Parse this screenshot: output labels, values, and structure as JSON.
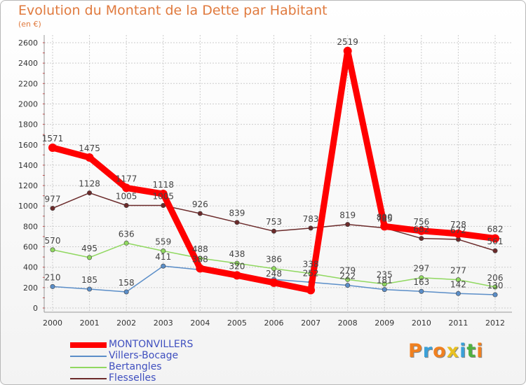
{
  "header": {
    "title": "Evolution du Montant de la Dette par Habitant",
    "subtitle": "(en €)"
  },
  "brand": {
    "letters": [
      "P",
      "r",
      "o",
      "x",
      "i",
      "t",
      "i"
    ],
    "colors": [
      "#f08020",
      "#3aa0d8",
      "#f08020",
      "#e8c020",
      "#3aa0d8",
      "#50b040",
      "#f08020"
    ]
  },
  "chart_data": {
    "type": "line",
    "title": "Evolution du Montant de la Dette par Habitant",
    "ylabel": "(en €)",
    "xlabel": "",
    "ylim": [
      0,
      2600
    ],
    "yticks": [
      0,
      200,
      400,
      600,
      800,
      1000,
      1200,
      1400,
      1600,
      1800,
      2000,
      2200,
      2400,
      2600
    ],
    "x": [
      "2000",
      "2001",
      "2002",
      "2003",
      "2004",
      "2005",
      "2006",
      "2007",
      "2008",
      "2009",
      "2010",
      "2011",
      "2012"
    ],
    "grid": true,
    "legend_position": "bottom-left",
    "series": [
      {
        "name": "MONTONVILLERS",
        "color": "#ff0000",
        "values": [
          1571,
          1475,
          1177,
          1118,
          388,
          320,
          248,
          175,
          2519,
          800,
          756,
          728,
          682
        ],
        "labels": [
          "1571",
          "1475",
          "1177",
          "1118",
          "388",
          "320",
          "248",
          "",
          "2519",
          "800",
          "756",
          "728",
          "682"
        ]
      },
      {
        "name": "Villers-Bocage",
        "color": "#5b8ec8",
        "values": [
          210,
          185,
          158,
          411,
          375,
          330,
          280,
          252,
          222,
          181,
          163,
          142,
          130
        ],
        "labels": [
          "210",
          "185",
          "158",
          "411",
          "",
          "",
          "",
          "252",
          "222",
          "181",
          "163",
          "142",
          "130"
        ]
      },
      {
        "name": "Bertangles",
        "color": "#90d860",
        "values": [
          570,
          495,
          636,
          559,
          488,
          438,
          386,
          338,
          279,
          235,
          297,
          277,
          206
        ],
        "labels": [
          "570",
          "495",
          "636",
          "559",
          "488",
          "438",
          "386",
          "338",
          "279",
          "235",
          "297",
          "277",
          "206"
        ]
      },
      {
        "name": "Flesselles",
        "color": "#6b2a2a",
        "values": [
          977,
          1128,
          1005,
          1005,
          926,
          839,
          753,
          783,
          819,
          785,
          682,
          672,
          561
        ],
        "labels": [
          "977",
          "1128",
          "1005",
          "1005",
          "926",
          "839",
          "753",
          "783",
          "819",
          "785",
          "682",
          "672",
          "561"
        ]
      }
    ]
  }
}
